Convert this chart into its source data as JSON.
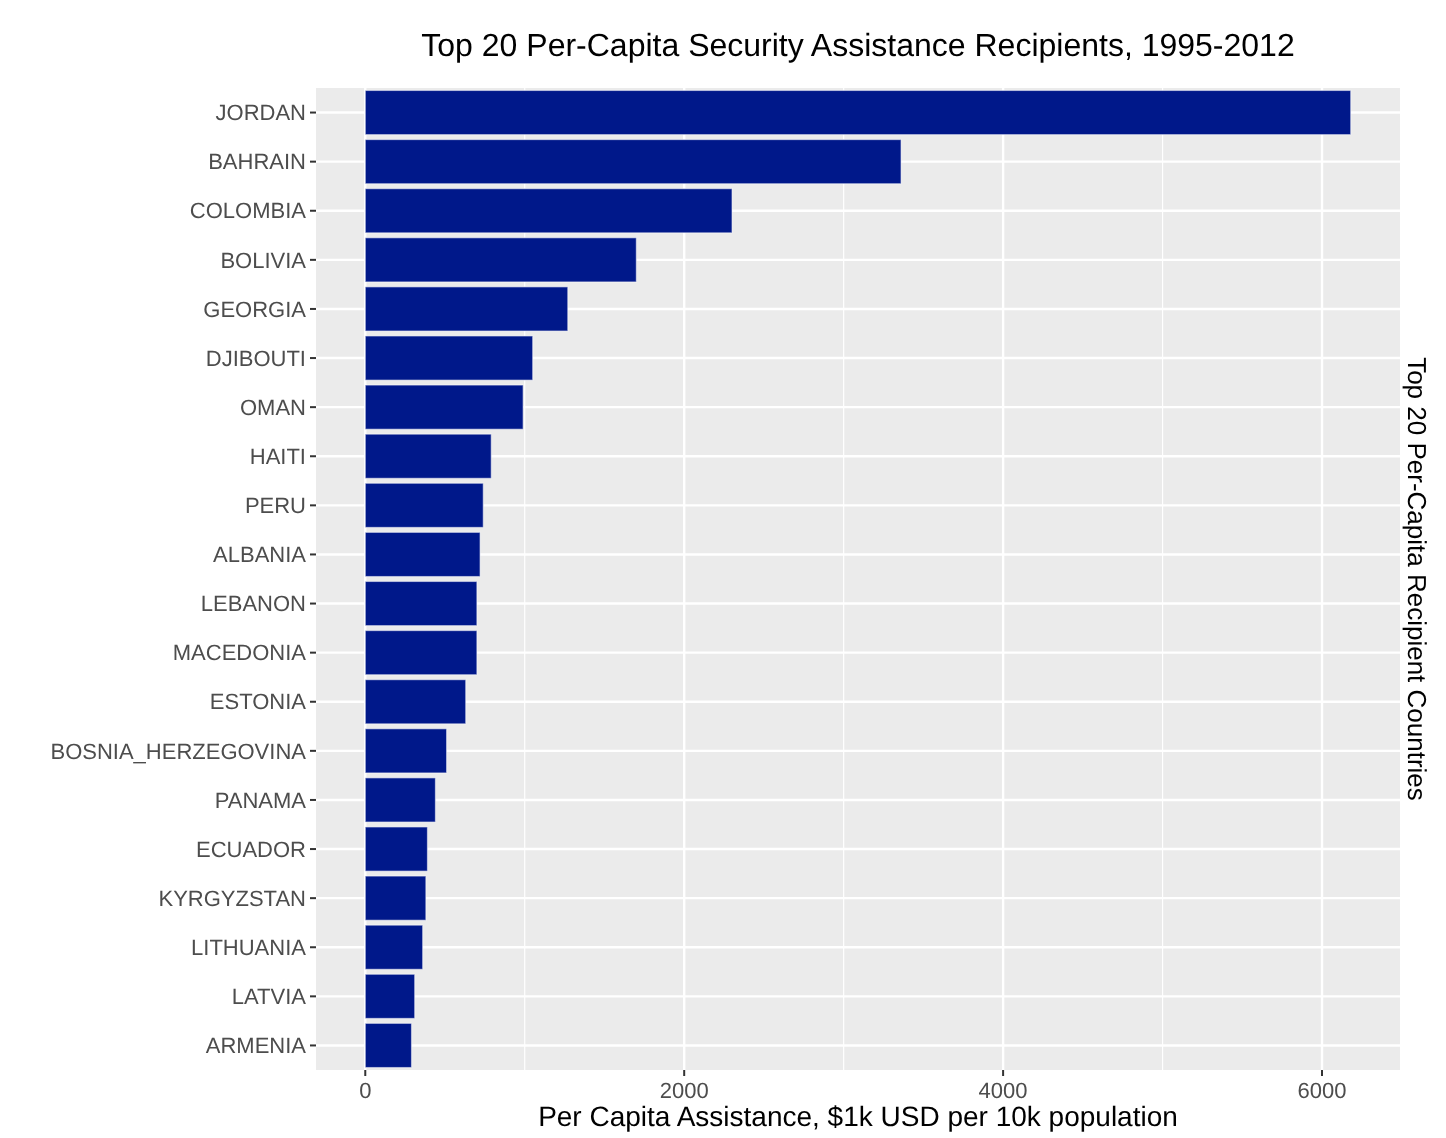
{
  "chart_data": {
    "type": "bar",
    "orientation": "horizontal",
    "title": "Top 20 Per-Capita Security Assistance Recipients, 1995-2012",
    "xlabel": "Per Capita Assistance, $1k USD per 10k population",
    "ylabel": "Top 20 Per-Capita Recipient Countries",
    "categories": [
      "JORDAN",
      "BAHRAIN",
      "COLOMBIA",
      "BOLIVIA",
      "GEORGIA",
      "DJIBOUTI",
      "OMAN",
      "HAITI",
      "PERU",
      "ALBANIA",
      "LEBANON",
      "MACEDONIA",
      "ESTONIA",
      "BOSNIA_HERZEGOVINA",
      "PANAMA",
      "ECUADOR",
      "KYRGYZSTAN",
      "LITHUANIA",
      "LATVIA",
      "ARMENIA"
    ],
    "values": [
      6180,
      3360,
      2300,
      1700,
      1270,
      1050,
      990,
      790,
      740,
      720,
      700,
      700,
      630,
      510,
      440,
      390,
      380,
      360,
      310,
      290
    ],
    "color": "#00188a",
    "xlim": [
      -309,
      6489
    ],
    "xticks": [
      0,
      2000,
      4000,
      6000
    ],
    "grid": true
  }
}
